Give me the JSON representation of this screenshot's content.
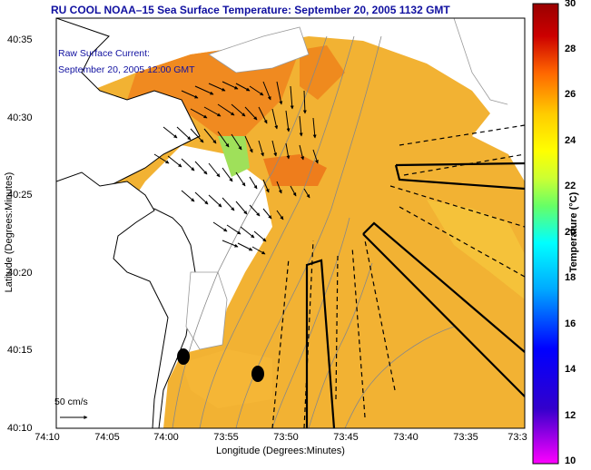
{
  "title": "RU COOL  NOAA–15  Sea Surface Temperature:  September 20, 2005 1132 GMT",
  "current_label": {
    "line1": "Raw Surface Current:",
    "line2": "September 20, 2005 12:00 GMT"
  },
  "axes": {
    "x_label": "Longitude (Degrees:Minutes)",
    "y_label": "Latitude (Degrees:Minutes)",
    "x_ticks": [
      "74:10",
      "74:05",
      "74:00",
      "73:55",
      "73:50",
      "73:45",
      "73:40",
      "73:35",
      "73:3"
    ],
    "y_ticks": [
      "40:35",
      "40:30",
      "40:25",
      "40:20",
      "40:15",
      "40:10"
    ]
  },
  "scale_arrow_label": "50 cm/s",
  "colorbar": {
    "title": "Temperature (°C)",
    "ticks": [
      "30",
      "28",
      "26",
      "24",
      "22",
      "20",
      "18",
      "16",
      "14",
      "12",
      "10"
    ],
    "colors": [
      "#ff00ff",
      "#3300cc",
      "#0000ff",
      "#00aaff",
      "#00ffff",
      "#66ff66",
      "#ccff33",
      "#ffff00",
      "#ffcc00",
      "#ff6600",
      "#cc0000",
      "#990000"
    ]
  },
  "map_colors": {
    "sst_main": "#f2b233",
    "sst_warm": "#f08a20",
    "sst_cool": "#9fe05a",
    "land": "#ffffff"
  }
}
